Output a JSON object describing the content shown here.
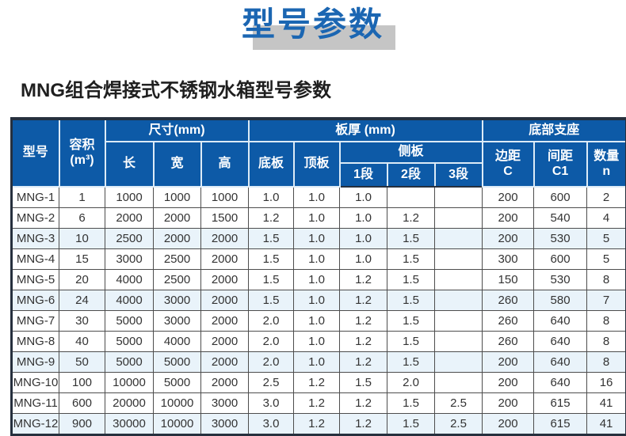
{
  "page": {
    "title": "型号参数",
    "subtitle": "MNG组合焊接式不锈钢水箱型号参数"
  },
  "table": {
    "header": {
      "model": "型号",
      "capacity": "容积\n(m³)",
      "size_group": "尺寸(mm)",
      "length": "长",
      "width": "宽",
      "height": "高",
      "thickness_group": "板厚 (mm)",
      "bottom_plate": "底板",
      "top_plate": "顶板",
      "side_group": "侧板",
      "seg1": "1段",
      "seg2": "2段",
      "seg3": "3段",
      "support_group": "底部支座",
      "edge_c": "边距\nC",
      "spacing_c1": "间距\nC1",
      "qty": "数量\nn"
    },
    "rows": [
      {
        "model": "MNG-1",
        "capacity": "1",
        "length": "1000",
        "width": "1000",
        "height": "1000",
        "bottom_plate": "1.0",
        "top_plate": "1.0",
        "seg1": "1.0",
        "seg2": "",
        "seg3": "",
        "edge_c": "200",
        "spacing_c1": "600",
        "qty": "2"
      },
      {
        "model": "MNG-2",
        "capacity": "6",
        "length": "2000",
        "width": "2000",
        "height": "1500",
        "bottom_plate": "1.2",
        "top_plate": "1.0",
        "seg1": "1.0",
        "seg2": "1.2",
        "seg3": "",
        "edge_c": "200",
        "spacing_c1": "540",
        "qty": "4"
      },
      {
        "model": "MNG-3",
        "capacity": "10",
        "length": "2500",
        "width": "2000",
        "height": "2000",
        "bottom_plate": "1.5",
        "top_plate": "1.0",
        "seg1": "1.0",
        "seg2": "1.5",
        "seg3": "",
        "edge_c": "200",
        "spacing_c1": "530",
        "qty": "5"
      },
      {
        "model": "MNG-4",
        "capacity": "15",
        "length": "3000",
        "width": "2500",
        "height": "2000",
        "bottom_plate": "1.5",
        "top_plate": "1.0",
        "seg1": "1.0",
        "seg2": "1.5",
        "seg3": "",
        "edge_c": "300",
        "spacing_c1": "600",
        "qty": "5"
      },
      {
        "model": "MNG-5",
        "capacity": "20",
        "length": "4000",
        "width": "2500",
        "height": "2000",
        "bottom_plate": "1.5",
        "top_plate": "1.0",
        "seg1": "1.2",
        "seg2": "1.5",
        "seg3": "",
        "edge_c": "150",
        "spacing_c1": "530",
        "qty": "8"
      },
      {
        "model": "MNG-6",
        "capacity": "24",
        "length": "4000",
        "width": "3000",
        "height": "2000",
        "bottom_plate": "1.5",
        "top_plate": "1.0",
        "seg1": "1.2",
        "seg2": "1.5",
        "seg3": "",
        "edge_c": "260",
        "spacing_c1": "580",
        "qty": "7"
      },
      {
        "model": "MNG-7",
        "capacity": "30",
        "length": "5000",
        "width": "3000",
        "height": "2000",
        "bottom_plate": "2.0",
        "top_plate": "1.0",
        "seg1": "1.2",
        "seg2": "1.5",
        "seg3": "",
        "edge_c": "260",
        "spacing_c1": "640",
        "qty": "8"
      },
      {
        "model": "MNG-8",
        "capacity": "40",
        "length": "5000",
        "width": "4000",
        "height": "2000",
        "bottom_plate": "2.0",
        "top_plate": "1.0",
        "seg1": "1.2",
        "seg2": "1.5",
        "seg3": "",
        "edge_c": "260",
        "spacing_c1": "640",
        "qty": "8"
      },
      {
        "model": "MNG-9",
        "capacity": "50",
        "length": "5000",
        "width": "5000",
        "height": "2000",
        "bottom_plate": "2.0",
        "top_plate": "1.0",
        "seg1": "1.2",
        "seg2": "1.5",
        "seg3": "",
        "edge_c": "200",
        "spacing_c1": "640",
        "qty": "8"
      },
      {
        "model": "MNG-10",
        "capacity": "100",
        "length": "10000",
        "width": "5000",
        "height": "2000",
        "bottom_plate": "2.5",
        "top_plate": "1.2",
        "seg1": "1.5",
        "seg2": "2.0",
        "seg3": "",
        "edge_c": "200",
        "spacing_c1": "640",
        "qty": "16"
      },
      {
        "model": "MNG-11",
        "capacity": "600",
        "length": "20000",
        "width": "10000",
        "height": "3000",
        "bottom_plate": "3.0",
        "top_plate": "1.2",
        "seg1": "1.2",
        "seg2": "1.5",
        "seg3": "2.5",
        "edge_c": "200",
        "spacing_c1": "615",
        "qty": "41"
      },
      {
        "model": "MNG-12",
        "capacity": "900",
        "length": "30000",
        "width": "10000",
        "height": "3000",
        "bottom_plate": "3.0",
        "top_plate": "1.2",
        "seg1": "1.2",
        "seg2": "1.5",
        "seg3": "2.5",
        "edge_c": "200",
        "spacing_c1": "615",
        "qty": "41"
      }
    ]
  },
  "colors": {
    "header_bg": "#0d5aa7",
    "title_blue": "#1b66b2",
    "title_shadow": "#c5c5c5",
    "row_tint": "#e9f3fa",
    "border_dark": "#26303e"
  }
}
